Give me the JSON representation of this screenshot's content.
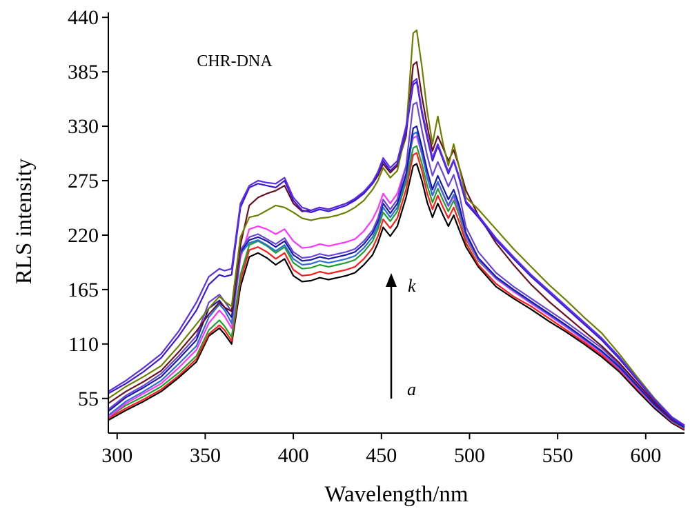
{
  "chart_data": {
    "type": "line",
    "title": "",
    "xlabel": "Wavelength/nm",
    "ylabel": "RLS intensity",
    "xlim": [
      295,
      622
    ],
    "ylim": [
      20,
      445
    ],
    "x_ticks": [
      300,
      350,
      400,
      450,
      500,
      550,
      600
    ],
    "y_ticks": [
      55,
      110,
      165,
      220,
      275,
      330,
      385,
      440
    ],
    "grid": false,
    "annotations": {
      "label": "CHR-DNA",
      "arrow_start": "a",
      "arrow_end": "k"
    },
    "x": [
      295,
      305,
      315,
      325,
      335,
      345,
      352,
      358,
      361,
      365,
      370,
      375,
      380,
      385,
      390,
      395,
      400,
      405,
      410,
      415,
      420,
      425,
      430,
      435,
      440,
      445,
      448,
      451,
      455,
      459,
      464,
      468,
      470,
      473,
      476,
      479,
      482,
      485,
      488,
      491,
      494,
      498,
      505,
      515,
      525,
      535,
      545,
      555,
      565,
      575,
      585,
      595,
      605,
      615,
      622
    ],
    "series": [
      {
        "color": "#000000",
        "values": [
          33,
          43,
          52,
          62,
          76,
          92,
          118,
          126,
          120,
          110,
          168,
          198,
          202,
          197,
          190,
          196,
          179,
          173,
          174,
          177,
          175,
          177,
          179,
          182,
          190,
          200,
          212,
          228,
          219,
          229,
          258,
          290,
          292,
          275,
          253,
          238,
          252,
          240,
          229,
          240,
          226,
          208,
          188,
          168,
          156,
          145,
          133,
          122,
          110,
          97,
          82,
          63,
          45,
          30,
          23
        ]
      },
      {
        "color": "#ff1a1a",
        "values": [
          35,
          45,
          54,
          64,
          78,
          95,
          120,
          129,
          124,
          113,
          174,
          205,
          208,
          203,
          196,
          202,
          185,
          179,
          180,
          183,
          181,
          183,
          185,
          188,
          196,
          207,
          219,
          236,
          227,
          237,
          266,
          301,
          303,
          285,
          262,
          246,
          260,
          248,
          237,
          248,
          234,
          212,
          190,
          171,
          158,
          148,
          136,
          124,
          112,
          99,
          84,
          65,
          47,
          31,
          24
        ]
      },
      {
        "color": "#1fa02a",
        "values": [
          36,
          48,
          57,
          67,
          81,
          98,
          124,
          134,
          128,
          117,
          180,
          210,
          214,
          209,
          202,
          208,
          192,
          186,
          187,
          190,
          188,
          190,
          192,
          195,
          203,
          214,
          226,
          243,
          234,
          244,
          274,
          308,
          310,
          292,
          270,
          253,
          267,
          255,
          244,
          255,
          241,
          216,
          194,
          176,
          164,
          152,
          140,
          128,
          115,
          102,
          86,
          67,
          48,
          32,
          25
        ]
      },
      {
        "color": "#ff33ff",
        "values": [
          36,
          50,
          60,
          70,
          86,
          104,
          131,
          144,
          138,
          126,
          197,
          226,
          229,
          226,
          221,
          226,
          214,
          207,
          208,
          211,
          209,
          211,
          213,
          216,
          224,
          236,
          247,
          262,
          252,
          262,
          290,
          318,
          320,
          301,
          279,
          260,
          273,
          261,
          249,
          259,
          245,
          218,
          195,
          176,
          163,
          151,
          139,
          127,
          114,
          101,
          85,
          66,
          47,
          32,
          25
        ]
      },
      {
        "color": "#2a6ed8",
        "values": [
          38,
          52,
          62,
          73,
          90,
          108,
          137,
          150,
          144,
          131,
          201,
          212,
          215,
          210,
          204,
          210,
          196,
          190,
          191,
          194,
          192,
          194,
          196,
          199,
          207,
          218,
          230,
          248,
          238,
          248,
          278,
          322,
          324,
          303,
          278,
          260,
          274,
          262,
          250,
          261,
          247,
          220,
          196,
          177,
          164,
          152,
          140,
          128,
          115,
          102,
          86,
          67,
          48,
          32,
          25
        ]
      },
      {
        "color": "#1a1aa8",
        "values": [
          42,
          56,
          66,
          77,
          95,
          114,
          146,
          154,
          147,
          137,
          203,
          215,
          218,
          214,
          208,
          214,
          200,
          194,
          195,
          198,
          196,
          198,
          200,
          203,
          211,
          222,
          234,
          252,
          242,
          252,
          282,
          328,
          330,
          309,
          285,
          266,
          280,
          268,
          256,
          266,
          251,
          222,
          197,
          178,
          165,
          153,
          141,
          129,
          116,
          103,
          87,
          68,
          49,
          33,
          26
        ]
      },
      {
        "color": "#6b45d8",
        "values": [
          44,
          58,
          68,
          80,
          98,
          118,
          152,
          160,
          153,
          143,
          205,
          218,
          221,
          216,
          211,
          217,
          203,
          197,
          198,
          201,
          199,
          201,
          203,
          206,
          214,
          225,
          237,
          256,
          246,
          256,
          290,
          352,
          354,
          326,
          300,
          280,
          294,
          282,
          269,
          281,
          263,
          228,
          203,
          182,
          168,
          156,
          144,
          132,
          119,
          106,
          89,
          70,
          51,
          34,
          27
        ]
      },
      {
        "color": "#6b0f1e",
        "values": [
          50,
          62,
          72,
          83,
          102,
          123,
          140,
          152,
          147,
          143,
          210,
          250,
          258,
          262,
          265,
          270,
          252,
          244,
          245,
          248,
          246,
          249,
          252,
          256,
          262,
          272,
          280,
          292,
          283,
          290,
          320,
          392,
          395,
          360,
          330,
          305,
          320,
          308,
          295,
          306,
          290,
          265,
          240,
          212,
          190,
          170,
          153,
          138,
          123,
          108,
          91,
          71,
          51,
          34,
          27
        ]
      },
      {
        "color": "#6e7f00",
        "values": [
          55,
          67,
          77,
          88,
          108,
          130,
          146,
          158,
          153,
          148,
          218,
          238,
          240,
          245,
          250,
          248,
          243,
          237,
          235,
          237,
          238,
          240,
          243,
          248,
          255,
          266,
          275,
          288,
          278,
          285,
          325,
          424,
          427,
          390,
          345,
          312,
          340,
          312,
          290,
          312,
          290,
          258,
          246,
          226,
          206,
          188,
          170,
          154,
          137,
          121,
          100,
          77,
          55,
          36,
          28
        ]
      },
      {
        "color": "#3a1ad8",
        "values": [
          60,
          70,
          82,
          96,
          118,
          144,
          170,
          180,
          178,
          180,
          248,
          268,
          272,
          270,
          268,
          275,
          255,
          245,
          243,
          246,
          244,
          247,
          250,
          255,
          262,
          272,
          282,
          295,
          285,
          292,
          325,
          372,
          375,
          343,
          318,
          295,
          310,
          296,
          282,
          295,
          278,
          252,
          238,
          215,
          196,
          178,
          162,
          146,
          130,
          114,
          95,
          74,
          53,
          35,
          27
        ]
      },
      {
        "color": "#5a2ee8",
        "values": [
          62,
          73,
          86,
          100,
          123,
          152,
          178,
          186,
          184,
          186,
          252,
          270,
          275,
          273,
          272,
          278,
          258,
          248,
          245,
          248,
          246,
          249,
          252,
          257,
          264,
          274,
          284,
          298,
          288,
          295,
          330,
          375,
          378,
          346,
          321,
          298,
          312,
          298,
          284,
          296,
          280,
          254,
          240,
          217,
          198,
          180,
          164,
          148,
          132,
          116,
          97,
          75,
          54,
          36,
          28
        ]
      }
    ]
  }
}
